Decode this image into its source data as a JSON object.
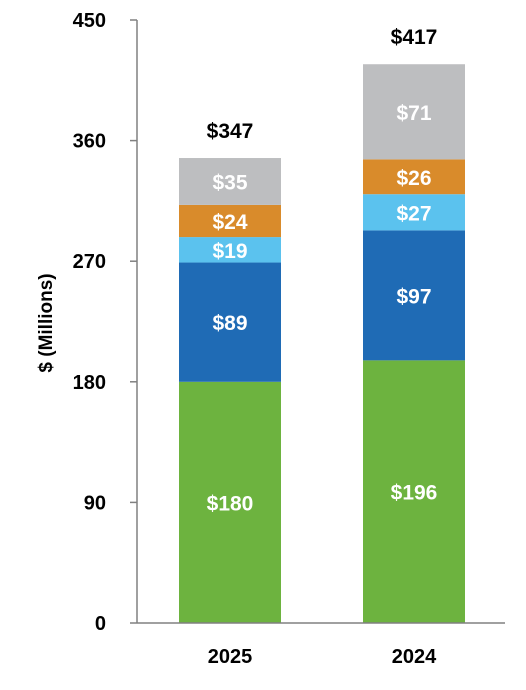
{
  "chart_data": {
    "type": "bar",
    "stacked": true,
    "categories": [
      "2025",
      "2024"
    ],
    "series": [
      {
        "values": [
          180,
          196
        ],
        "labels": [
          "$180",
          "$196"
        ],
        "color": "#6db33f"
      },
      {
        "values": [
          89,
          97
        ],
        "labels": [
          "$89",
          "$97"
        ],
        "color": "#1f6bb5"
      },
      {
        "values": [
          19,
          27
        ],
        "labels": [
          "$19",
          "$27"
        ],
        "color": "#5bc2ee"
      },
      {
        "values": [
          24,
          26
        ],
        "labels": [
          "$24",
          "$26"
        ],
        "color": "#d98b2b"
      },
      {
        "values": [
          35,
          71
        ],
        "labels": [
          "$35",
          "$71"
        ],
        "color": "#bdbec0"
      }
    ],
    "totals": [
      "$347",
      "$417"
    ],
    "ylabel": "$ (Millions)",
    "ylim": [
      0,
      450
    ],
    "yticks": [
      "0",
      "90",
      "180",
      "270",
      "360",
      "450"
    ],
    "grid": false,
    "legend": "none"
  }
}
